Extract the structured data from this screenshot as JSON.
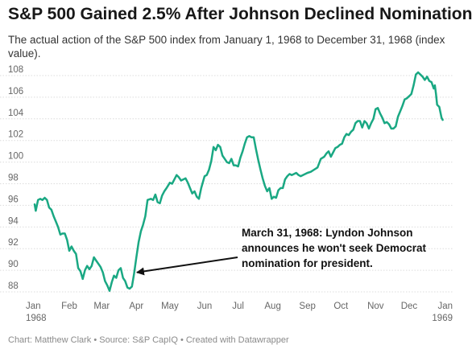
{
  "chart_data": {
    "type": "line",
    "title": "S&P 500 Gained 2.5% After Johnson Declined Nomination",
    "subtitle": "The actual action of the S&P 500 index from January 1, 1968 to December 31, 1968 (index value).",
    "ylim": [
      88,
      108
    ],
    "yticks": [
      88,
      90,
      92,
      94,
      96,
      98,
      100,
      102,
      104,
      106,
      108
    ],
    "xlim": [
      "1968-01-01",
      "1969-01-01"
    ],
    "xticks": [
      {
        "date": "1968-01-01",
        "label": "Jan",
        "sublabel": "1968"
      },
      {
        "date": "1968-02-01",
        "label": "Feb"
      },
      {
        "date": "1968-03-01",
        "label": "Mar"
      },
      {
        "date": "1968-04-01",
        "label": "Apr"
      },
      {
        "date": "1968-05-01",
        "label": "May"
      },
      {
        "date": "1968-06-01",
        "label": "Jun"
      },
      {
        "date": "1968-07-01",
        "label": "Jul"
      },
      {
        "date": "1968-08-01",
        "label": "Aug"
      },
      {
        "date": "1968-09-01",
        "label": "Sep"
      },
      {
        "date": "1968-10-01",
        "label": "Oct"
      },
      {
        "date": "1968-11-01",
        "label": "Nov"
      },
      {
        "date": "1968-12-01",
        "label": "Dec"
      },
      {
        "date": "1969-01-01",
        "label": "Jan",
        "sublabel": "1969"
      }
    ],
    "grid": true,
    "series": [
      {
        "color": "#1aa883",
        "points": [
          [
            "1968-01-01",
            96.1
          ],
          [
            "1968-01-02",
            95.5
          ],
          [
            "1968-01-04",
            96.5
          ],
          [
            "1968-01-06",
            96.6
          ],
          [
            "1968-01-08",
            96.5
          ],
          [
            "1968-01-10",
            96.7
          ],
          [
            "1968-01-12",
            96.5
          ],
          [
            "1968-01-14",
            95.8
          ],
          [
            "1968-01-16",
            95.6
          ],
          [
            "1968-01-18",
            95.0
          ],
          [
            "1968-01-20",
            94.5
          ],
          [
            "1968-01-22",
            94.0
          ],
          [
            "1968-01-24",
            93.3
          ],
          [
            "1968-01-26",
            93.4
          ],
          [
            "1968-01-28",
            93.4
          ],
          [
            "1968-01-30",
            92.8
          ],
          [
            "1968-02-01",
            91.8
          ],
          [
            "1968-02-03",
            92.2
          ],
          [
            "1968-02-05",
            91.8
          ],
          [
            "1968-02-07",
            91.5
          ],
          [
            "1968-02-09",
            90.2
          ],
          [
            "1968-02-11",
            89.9
          ],
          [
            "1968-02-13",
            89.2
          ],
          [
            "1968-02-15",
            90.0
          ],
          [
            "1968-02-17",
            90.4
          ],
          [
            "1968-02-19",
            90.1
          ],
          [
            "1968-02-21",
            90.4
          ],
          [
            "1968-02-23",
            91.2
          ],
          [
            "1968-02-25",
            90.9
          ],
          [
            "1968-02-27",
            90.6
          ],
          [
            "1968-02-29",
            90.3
          ],
          [
            "1968-03-02",
            89.8
          ],
          [
            "1968-03-04",
            89.0
          ],
          [
            "1968-03-06",
            88.6
          ],
          [
            "1968-03-08",
            88.1
          ],
          [
            "1968-03-10",
            88.9
          ],
          [
            "1968-03-12",
            89.5
          ],
          [
            "1968-03-14",
            89.3
          ],
          [
            "1968-03-16",
            90.0
          ],
          [
            "1968-03-18",
            90.2
          ],
          [
            "1968-03-20",
            89.3
          ],
          [
            "1968-03-22",
            89.0
          ],
          [
            "1968-03-24",
            88.4
          ],
          [
            "1968-03-26",
            88.3
          ],
          [
            "1968-03-28",
            88.5
          ],
          [
            "1968-03-30",
            89.7
          ],
          [
            "1968-04-01",
            91.2
          ],
          [
            "1968-04-03",
            92.6
          ],
          [
            "1968-04-05",
            93.6
          ],
          [
            "1968-04-07",
            94.2
          ],
          [
            "1968-04-09",
            95.0
          ],
          [
            "1968-04-11",
            96.5
          ],
          [
            "1968-04-14",
            96.6
          ],
          [
            "1968-04-16",
            96.5
          ],
          [
            "1968-04-18",
            97.0
          ],
          [
            "1968-04-20",
            96.3
          ],
          [
            "1968-04-22",
            96.2
          ],
          [
            "1968-04-24",
            96.9
          ],
          [
            "1968-04-26",
            97.3
          ],
          [
            "1968-04-28",
            97.6
          ],
          [
            "1968-05-01",
            98.1
          ],
          [
            "1968-05-03",
            98.0
          ],
          [
            "1968-05-05",
            98.4
          ],
          [
            "1968-05-07",
            98.8
          ],
          [
            "1968-05-09",
            98.6
          ],
          [
            "1968-05-11",
            98.3
          ],
          [
            "1968-05-13",
            98.4
          ],
          [
            "1968-05-15",
            98.5
          ],
          [
            "1968-05-17",
            98.1
          ],
          [
            "1968-05-19",
            97.6
          ],
          [
            "1968-05-21",
            97.1
          ],
          [
            "1968-05-23",
            97.3
          ],
          [
            "1968-05-25",
            96.8
          ],
          [
            "1968-05-27",
            96.6
          ],
          [
            "1968-05-29",
            97.6
          ],
          [
            "1968-06-01",
            98.7
          ],
          [
            "1968-06-03",
            98.8
          ],
          [
            "1968-06-05",
            99.3
          ],
          [
            "1968-06-07",
            100.1
          ],
          [
            "1968-06-09",
            101.4
          ],
          [
            "1968-06-11",
            101.1
          ],
          [
            "1968-06-13",
            101.6
          ],
          [
            "1968-06-15",
            101.4
          ],
          [
            "1968-06-17",
            100.6
          ],
          [
            "1968-06-19",
            100.3
          ],
          [
            "1968-06-21",
            100.0
          ],
          [
            "1968-06-23",
            99.9
          ],
          [
            "1968-06-25",
            100.3
          ],
          [
            "1968-06-27",
            99.7
          ],
          [
            "1968-06-29",
            99.7
          ],
          [
            "1968-07-01",
            99.6
          ],
          [
            "1968-07-03",
            100.4
          ],
          [
            "1968-07-05",
            101.0
          ],
          [
            "1968-07-07",
            101.7
          ],
          [
            "1968-07-09",
            102.3
          ],
          [
            "1968-07-11",
            102.4
          ],
          [
            "1968-07-13",
            102.3
          ],
          [
            "1968-07-15",
            102.3
          ],
          [
            "1968-07-17",
            101.2
          ],
          [
            "1968-07-19",
            100.2
          ],
          [
            "1968-07-21",
            99.3
          ],
          [
            "1968-07-23",
            98.5
          ],
          [
            "1968-07-25",
            97.8
          ],
          [
            "1968-07-27",
            97.3
          ],
          [
            "1968-07-29",
            97.6
          ],
          [
            "1968-07-31",
            96.6
          ],
          [
            "1968-08-02",
            96.8
          ],
          [
            "1968-08-04",
            96.7
          ],
          [
            "1968-08-06",
            97.4
          ],
          [
            "1968-08-08",
            97.6
          ],
          [
            "1968-08-10",
            97.6
          ],
          [
            "1968-08-12",
            98.4
          ],
          [
            "1968-08-14",
            98.7
          ],
          [
            "1968-08-16",
            98.9
          ],
          [
            "1968-08-18",
            98.8
          ],
          [
            "1968-08-20",
            98.9
          ],
          [
            "1968-08-22",
            99.0
          ],
          [
            "1968-08-24",
            98.8
          ],
          [
            "1968-08-26",
            98.7
          ],
          [
            "1968-08-28",
            98.8
          ],
          [
            "1968-08-30",
            98.9
          ],
          [
            "1968-09-01",
            99.0
          ],
          [
            "1968-09-04",
            99.1
          ],
          [
            "1968-09-07",
            99.3
          ],
          [
            "1968-09-10",
            99.5
          ],
          [
            "1968-09-13",
            100.3
          ],
          [
            "1968-09-16",
            100.5
          ],
          [
            "1968-09-18",
            100.8
          ],
          [
            "1968-09-20",
            101.0
          ],
          [
            "1968-09-22",
            100.5
          ],
          [
            "1968-09-24",
            100.9
          ],
          [
            "1968-09-26",
            101.3
          ],
          [
            "1968-09-28",
            101.4
          ],
          [
            "1968-09-30",
            101.6
          ],
          [
            "1968-10-02",
            101.7
          ],
          [
            "1968-10-04",
            102.3
          ],
          [
            "1968-10-06",
            102.6
          ],
          [
            "1968-10-08",
            102.5
          ],
          [
            "1968-10-10",
            102.8
          ],
          [
            "1968-10-12",
            103.0
          ],
          [
            "1968-10-14",
            103.6
          ],
          [
            "1968-10-16",
            103.8
          ],
          [
            "1968-10-18",
            103.8
          ],
          [
            "1968-10-20",
            103.2
          ],
          [
            "1968-10-22",
            103.8
          ],
          [
            "1968-10-24",
            103.6
          ],
          [
            "1968-10-26",
            103.1
          ],
          [
            "1968-10-28",
            103.6
          ],
          [
            "1968-10-30",
            104.0
          ],
          [
            "1968-11-01",
            104.9
          ],
          [
            "1968-11-03",
            105.0
          ],
          [
            "1968-11-05",
            104.5
          ],
          [
            "1968-11-07",
            104.1
          ],
          [
            "1968-11-09",
            103.6
          ],
          [
            "1968-11-11",
            103.7
          ],
          [
            "1968-11-13",
            103.5
          ],
          [
            "1968-11-15",
            103.1
          ],
          [
            "1968-11-17",
            103.1
          ],
          [
            "1968-11-19",
            103.3
          ],
          [
            "1968-11-21",
            104.2
          ],
          [
            "1968-11-23",
            104.7
          ],
          [
            "1968-11-25",
            105.2
          ],
          [
            "1968-11-27",
            105.8
          ],
          [
            "1968-11-29",
            105.9
          ],
          [
            "1968-12-01",
            106.1
          ],
          [
            "1968-12-03",
            106.3
          ],
          [
            "1968-12-05",
            107.1
          ],
          [
            "1968-12-07",
            108.1
          ],
          [
            "1968-12-09",
            108.3
          ],
          [
            "1968-12-11",
            108.1
          ],
          [
            "1968-12-13",
            107.9
          ],
          [
            "1968-12-15",
            107.6
          ],
          [
            "1968-12-17",
            107.9
          ],
          [
            "1968-12-19",
            107.5
          ],
          [
            "1968-12-21",
            107.4
          ],
          [
            "1968-12-23",
            106.8
          ],
          [
            "1968-12-24",
            107.1
          ],
          [
            "1968-12-25",
            106.3
          ],
          [
            "1968-12-26",
            105.3
          ],
          [
            "1968-12-28",
            105.1
          ],
          [
            "1968-12-30",
            104.1
          ],
          [
            "1968-12-31",
            103.9
          ]
        ]
      }
    ],
    "annotations": [
      {
        "lines": [
          "March 31, 1968: Lyndon Johnson",
          "announces he won't seek Democrat",
          "nomination for president."
        ],
        "target": [
          "1968-03-31",
          89.8
        ]
      }
    ]
  },
  "footer": {
    "text": "Chart: Matthew Clark • Source: S&P CapIQ • Created with Datawrapper"
  }
}
